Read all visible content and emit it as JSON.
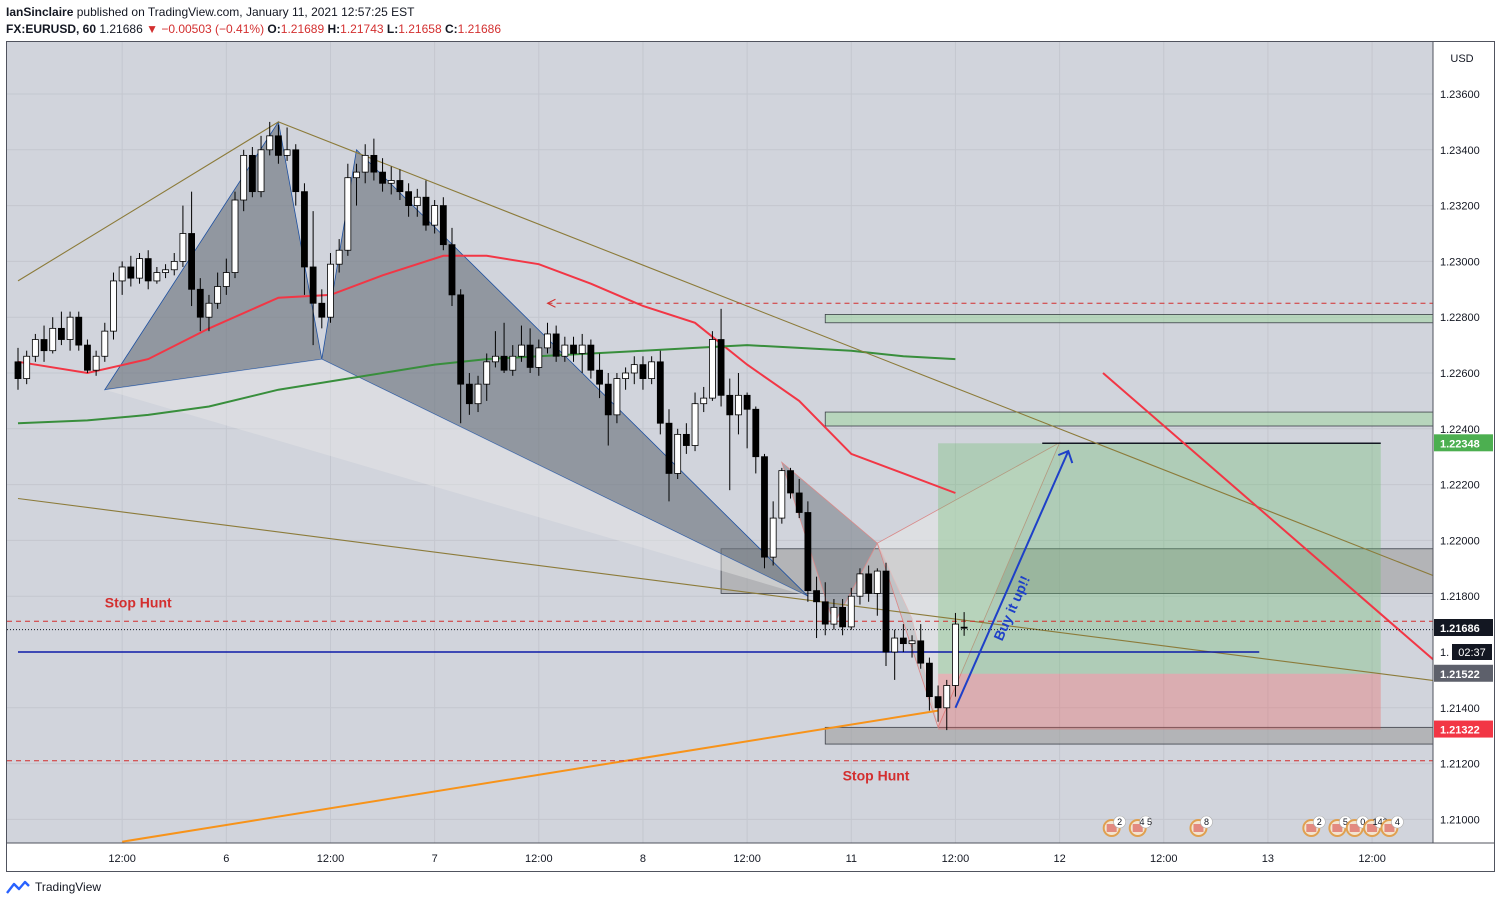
{
  "header": {
    "author": "IanSinclaire",
    "published_text": "published on TradingView.com, January 11, 2021 12:57:25 EST",
    "symbol": "FX:EURUSD, 60",
    "last": "1.21686",
    "change": "▼ −0.00503 (−0.41%)",
    "open_label": "O:",
    "open": "1.21689",
    "high_label": "H:",
    "high": "1.21743",
    "low_label": "L:",
    "low": "1.21658",
    "close_label": "C:",
    "close": "1.21686"
  },
  "footer": {
    "brand": "TradingView"
  },
  "colors": {
    "up": "#ffffff",
    "down": "#000000",
    "ema_red": "#f23645",
    "ema_green": "#388e3c",
    "hline_blue": "#0d1ba8",
    "trend_orange": "#f7931a",
    "trend_olive": "#8c7b3a",
    "pattern_fill": "#6f7680",
    "zone_green": "#a5d6a7",
    "zone_dark": "#9e9e9e"
  },
  "chart_data": {
    "type": "candlestick",
    "symbol": "EURUSD",
    "timeframe": "60",
    "currency_label": "USD",
    "ylim": [
      1.209,
      1.238
    ],
    "x_domain": [
      0,
      165
    ],
    "x_ticks": [
      {
        "x": 12,
        "label": "12:00"
      },
      {
        "x": 24,
        "label": "6"
      },
      {
        "x": 36,
        "label": "12:00"
      },
      {
        "x": 48,
        "label": "7"
      },
      {
        "x": 60,
        "label": "12:00"
      },
      {
        "x": 72,
        "label": "8"
      },
      {
        "x": 84,
        "label": "12:00"
      },
      {
        "x": 96,
        "label": "11"
      },
      {
        "x": 108,
        "label": "12:00"
      },
      {
        "x": 120,
        "label": "12"
      },
      {
        "x": 132,
        "label": "12:00"
      },
      {
        "x": 144,
        "label": "13"
      },
      {
        "x": 156,
        "label": "12:00"
      }
    ],
    "y_ticks": [
      "1.23600",
      "1.23400",
      "1.23200",
      "1.23000",
      "1.22800",
      "1.22600",
      "1.22400",
      "1.22200",
      "1.22000",
      "1.21800",
      "1.21400",
      "1.21200",
      "1.21000"
    ],
    "price_tags": [
      {
        "price": 1.22348,
        "label": "1.22348",
        "color": "#4caf50"
      },
      {
        "price": 1.21686,
        "label": "1.21686",
        "color": "#131722"
      },
      {
        "price": 1.21522,
        "label": "1.21522",
        "color": "#5d606b"
      },
      {
        "price": 1.21322,
        "label": "1.21322",
        "color": "#f23645"
      }
    ],
    "countdown": {
      "label": "02:37",
      "partial": "1."
    },
    "candles": [
      [
        1.2264,
        1.2269,
        1.2254,
        1.2258
      ],
      [
        1.2258,
        1.2268,
        1.2256,
        1.2266
      ],
      [
        1.2266,
        1.2274,
        1.2264,
        1.2272
      ],
      [
        1.2272,
        1.2277,
        1.2264,
        1.2268
      ],
      [
        1.2268,
        1.228,
        1.2267,
        1.2276
      ],
      [
        1.2276,
        1.2282,
        1.227,
        1.2272
      ],
      [
        1.2272,
        1.2282,
        1.2268,
        1.228
      ],
      [
        1.228,
        1.2282,
        1.2268,
        1.227
      ],
      [
        1.227,
        1.2272,
        1.226,
        1.2261
      ],
      [
        1.2261,
        1.2268,
        1.2259,
        1.2266
      ],
      [
        1.2266,
        1.2278,
        1.2264,
        1.2275
      ],
      [
        1.2275,
        1.2296,
        1.2272,
        1.2293
      ],
      [
        1.2293,
        1.23,
        1.2288,
        1.2298
      ],
      [
        1.2298,
        1.2302,
        1.2291,
        1.2294
      ],
      [
        1.2294,
        1.2303,
        1.2292,
        1.2301
      ],
      [
        1.2301,
        1.2304,
        1.229,
        1.2293
      ],
      [
        1.2293,
        1.2298,
        1.2292,
        1.2296
      ],
      [
        1.2296,
        1.2299,
        1.2294,
        1.2297
      ],
      [
        1.2297,
        1.2303,
        1.2295,
        1.23
      ],
      [
        1.23,
        1.232,
        1.2298,
        1.231
      ],
      [
        1.231,
        1.2325,
        1.2284,
        1.229
      ],
      [
        1.229,
        1.2294,
        1.2275,
        1.228
      ],
      [
        1.228,
        1.2288,
        1.2275,
        1.2285
      ],
      [
        1.2285,
        1.2296,
        1.2283,
        1.2291
      ],
      [
        1.2291,
        1.2301,
        1.2288,
        1.2296
      ],
      [
        1.2296,
        1.2325,
        1.2294,
        1.2322
      ],
      [
        1.2322,
        1.234,
        1.2318,
        1.2338
      ],
      [
        1.2338,
        1.2341,
        1.2323,
        1.2325
      ],
      [
        1.2325,
        1.2345,
        1.2323,
        1.234
      ],
      [
        1.234,
        1.235,
        1.2338,
        1.2345
      ],
      [
        1.2345,
        1.2349,
        1.2335,
        1.2338
      ],
      [
        1.2338,
        1.2348,
        1.2336,
        1.234
      ],
      [
        1.234,
        1.2342,
        1.232,
        1.2325
      ],
      [
        1.2325,
        1.2328,
        1.2288,
        1.2298
      ],
      [
        1.2298,
        1.2318,
        1.227,
        1.2285
      ],
      [
        1.2285,
        1.229,
        1.2276,
        1.228
      ],
      [
        1.228,
        1.2303,
        1.2278,
        1.2299
      ],
      [
        1.2299,
        1.2308,
        1.2296,
        1.2304
      ],
      [
        1.2304,
        1.2335,
        1.2302,
        1.233
      ],
      [
        1.233,
        1.2335,
        1.232,
        1.2332
      ],
      [
        1.2332,
        1.2342,
        1.2328,
        1.2338
      ],
      [
        1.2338,
        1.2344,
        1.2329,
        1.2332
      ],
      [
        1.2332,
        1.2337,
        1.2325,
        1.2328
      ],
      [
        1.2328,
        1.2334,
        1.2324,
        1.2329
      ],
      [
        1.2329,
        1.2333,
        1.2322,
        1.2325
      ],
      [
        1.2325,
        1.2328,
        1.2316,
        1.232
      ],
      [
        1.232,
        1.2326,
        1.2316,
        1.2323
      ],
      [
        1.2323,
        1.2329,
        1.2311,
        1.2313
      ],
      [
        1.2313,
        1.2322,
        1.231,
        1.232
      ],
      [
        1.232,
        1.2323,
        1.2304,
        1.2306
      ],
      [
        1.2306,
        1.2312,
        1.2284,
        1.2288
      ],
      [
        1.2288,
        1.229,
        1.2242,
        1.2256
      ],
      [
        1.2256,
        1.226,
        1.2245,
        1.2249
      ],
      [
        1.2249,
        1.2259,
        1.2246,
        1.2256
      ],
      [
        1.2256,
        1.2267,
        1.225,
        1.2264
      ],
      [
        1.2264,
        1.2275,
        1.2262,
        1.2266
      ],
      [
        1.2266,
        1.2278,
        1.226,
        1.2261
      ],
      [
        1.2261,
        1.227,
        1.2259,
        1.2266
      ],
      [
        1.2266,
        1.2277,
        1.2264,
        1.227
      ],
      [
        1.227,
        1.2276,
        1.226,
        1.2262
      ],
      [
        1.2262,
        1.2272,
        1.2259,
        1.2269
      ],
      [
        1.2269,
        1.2278,
        1.2267,
        1.2274
      ],
      [
        1.2274,
        1.2277,
        1.2264,
        1.2266
      ],
      [
        1.2266,
        1.2273,
        1.2264,
        1.227
      ],
      [
        1.227,
        1.2273,
        1.2264,
        1.2267
      ],
      [
        1.2267,
        1.2274,
        1.226,
        1.227
      ],
      [
        1.227,
        1.2272,
        1.2258,
        1.2261
      ],
      [
        1.2261,
        1.2267,
        1.2251,
        1.2256
      ],
      [
        1.2256,
        1.226,
        1.2234,
        1.2245
      ],
      [
        1.2245,
        1.226,
        1.2242,
        1.2258
      ],
      [
        1.2258,
        1.2262,
        1.2254,
        1.226
      ],
      [
        1.226,
        1.2266,
        1.2256,
        1.2263
      ],
      [
        1.2263,
        1.2266,
        1.2254,
        1.2258
      ],
      [
        1.2258,
        1.2266,
        1.2256,
        1.2264
      ],
      [
        1.2264,
        1.2268,
        1.2238,
        1.2242
      ],
      [
        1.2242,
        1.2247,
        1.2214,
        1.2224
      ],
      [
        1.2224,
        1.224,
        1.2222,
        1.2238
      ],
      [
        1.2238,
        1.2242,
        1.2231,
        1.2234
      ],
      [
        1.2234,
        1.2253,
        1.2232,
        1.2249
      ],
      [
        1.2249,
        1.2255,
        1.2246,
        1.2251
      ],
      [
        1.2251,
        1.2275,
        1.225,
        1.2272
      ],
      [
        1.2272,
        1.2283,
        1.2248,
        1.2252
      ],
      [
        1.2252,
        1.2258,
        1.2218,
        1.2245
      ],
      [
        1.2245,
        1.226,
        1.2238,
        1.2252
      ],
      [
        1.2252,
        1.2253,
        1.2233,
        1.2247
      ],
      [
        1.2247,
        1.2248,
        1.2224,
        1.223
      ],
      [
        1.223,
        1.2231,
        1.219,
        1.2194
      ],
      [
        1.2194,
        1.2214,
        1.2191,
        1.2208
      ],
      [
        1.2208,
        1.2226,
        1.2206,
        1.2225
      ],
      [
        1.2225,
        1.2226,
        1.2215,
        1.2217
      ],
      [
        1.2217,
        1.2222,
        1.2208,
        1.221
      ],
      [
        1.221,
        1.2214,
        1.2178,
        1.2182
      ],
      [
        1.2182,
        1.2187,
        1.2165,
        1.2178
      ],
      [
        1.2178,
        1.2185,
        1.2166,
        1.217
      ],
      [
        1.217,
        1.2179,
        1.2168,
        1.2176
      ],
      [
        1.2176,
        1.2179,
        1.2166,
        1.2169
      ],
      [
        1.2169,
        1.2183,
        1.2168,
        1.218
      ],
      [
        1.218,
        1.219,
        1.2177,
        1.2188
      ],
      [
        1.2188,
        1.2191,
        1.2178,
        1.2181
      ],
      [
        1.2181,
        1.219,
        1.2173,
        1.2189
      ],
      [
        1.2189,
        1.2192,
        1.2155,
        1.216
      ],
      [
        1.216,
        1.2168,
        1.215,
        1.2165
      ],
      [
        1.2165,
        1.217,
        1.216,
        1.2163
      ],
      [
        1.2163,
        1.2166,
        1.2158,
        1.2164
      ],
      [
        1.2164,
        1.217,
        1.2154,
        1.2156
      ],
      [
        1.2156,
        1.2158,
        1.2139,
        1.2144
      ],
      [
        1.2144,
        1.2148,
        1.2135,
        1.214
      ],
      [
        1.214,
        1.215,
        1.2132,
        1.2148
      ],
      [
        1.2148,
        1.2174,
        1.2144,
        1.217
      ],
      [
        1.21689,
        1.21743,
        1.21658,
        1.21686
      ]
    ],
    "ema_red": [
      [
        0,
        1.2264
      ],
      [
        8,
        1.226
      ],
      [
        15,
        1.2265
      ],
      [
        22,
        1.2276
      ],
      [
        30,
        1.2287
      ],
      [
        36,
        1.2288
      ],
      [
        42,
        1.2295
      ],
      [
        49,
        1.2302
      ],
      [
        54,
        1.2302
      ],
      [
        60,
        1.2299
      ],
      [
        66,
        1.2292
      ],
      [
        72,
        1.2284
      ],
      [
        78,
        1.2278
      ],
      [
        84,
        1.2263
      ],
      [
        90,
        1.225
      ],
      [
        96,
        1.2231
      ],
      [
        102,
        1.2224
      ],
      [
        108,
        1.2217
      ]
    ],
    "ema_green": [
      [
        0,
        1.2242
      ],
      [
        8,
        1.2243
      ],
      [
        15,
        1.2245
      ],
      [
        22,
        1.2248
      ],
      [
        30,
        1.2254
      ],
      [
        36,
        1.2257
      ],
      [
        42,
        1.226
      ],
      [
        48,
        1.2263
      ],
      [
        54,
        1.2265
      ],
      [
        60,
        1.2266
      ],
      [
        66,
        1.2267
      ],
      [
        72,
        1.2268
      ],
      [
        78,
        1.2269
      ],
      [
        84,
        1.227
      ],
      [
        90,
        1.2269
      ],
      [
        96,
        1.2268
      ],
      [
        102,
        1.2266
      ],
      [
        108,
        1.2265
      ]
    ],
    "horizontal_lines": [
      {
        "price": 1.216,
        "color": "#0d1ba8",
        "x_start": 0,
        "x_end": 143
      },
      {
        "price": 1.2171,
        "color": "#d32f2f",
        "dashed": true
      },
      {
        "price": 1.2168,
        "color": "#131722",
        "dotted": true
      },
      {
        "price": 1.2121,
        "color": "#d32f2f",
        "dashed": true
      },
      {
        "price": 1.2285,
        "color": "#d32f2f",
        "dashed": true,
        "x_start": 61
      }
    ],
    "trendlines": [
      {
        "name": "olive-upper",
        "color": "#8c7b3a",
        "points": [
          [
            0,
            1.2293
          ],
          [
            30,
            1.235
          ],
          [
            165,
            1.2185
          ]
        ]
      },
      {
        "name": "olive-lower",
        "color": "#8c7b3a",
        "points": [
          [
            0,
            1.2215
          ],
          [
            165,
            1.2149
          ]
        ]
      },
      {
        "name": "orange-support",
        "color": "#f7931a",
        "points": [
          [
            12,
            1.2092
          ],
          [
            106,
            1.2139
          ]
        ]
      },
      {
        "name": "red-downtrend",
        "color": "#f23645",
        "points": [
          [
            125,
            1.226
          ],
          [
            165,
            1.2152
          ]
        ]
      }
    ],
    "harmonic_patterns": [
      {
        "name": "pattern-gray-left",
        "points": [
          [
            10,
            1.2254
          ],
          [
            30,
            1.235
          ],
          [
            35,
            1.2265
          ],
          [
            39,
            1.234
          ],
          [
            91,
            1.218
          ]
        ]
      },
      {
        "name": "pattern-small",
        "points": [
          [
            88,
            1.2228
          ],
          [
            94,
            1.217
          ],
          [
            99,
            1.2199
          ],
          [
            106,
            1.2133
          ],
          [
            103,
            1.2172
          ]
        ]
      },
      {
        "name": "pattern-light",
        "points": [
          [
            106,
            1.2133
          ],
          [
            120,
            1.2235
          ],
          [
            99,
            1.2199
          ]
        ]
      }
    ],
    "zones": [
      {
        "name": "green-zone-top",
        "from": [
          93,
          1.2281
        ],
        "to": [
          165,
          1.2278
        ],
        "color": "#a5d6a7"
      },
      {
        "name": "green-zone-mid",
        "from": [
          93,
          1.2246
        ],
        "to": [
          165,
          1.2241
        ],
        "color": "#a5d6a7"
      },
      {
        "name": "gray-zone",
        "from": [
          81,
          1.2197
        ],
        "to": [
          165,
          1.2181
        ],
        "color": "#9e9e9e"
      },
      {
        "name": "gray-zone-bottom",
        "from": [
          93,
          1.2133
        ],
        "to": [
          165,
          1.2127
        ],
        "color": "#9e9e9e"
      }
    ],
    "position": {
      "entry": 1.21522,
      "target": 1.22348,
      "stop": 1.21322,
      "x_from": 106,
      "x_to": 157
    },
    "arrow": {
      "from": [
        108,
        1.214
      ],
      "to": [
        121,
        1.2232
      ],
      "color": "#1e40c8"
    },
    "annotations": [
      {
        "text": "Stop Hunt",
        "x": 10,
        "price": 1.2176,
        "color": "#d32f2f"
      },
      {
        "text": "Stop Hunt",
        "x": 95,
        "price": 1.2114,
        "color": "#d32f2f"
      },
      {
        "text": "Buy it up!!",
        "x": 115,
        "price": 1.2175,
        "color": "#1e40c8",
        "rotate": -66
      }
    ],
    "event_markers": [
      {
        "x": 126,
        "badge": "2"
      },
      {
        "x": 129,
        "badge": "4 5"
      },
      {
        "x": 136,
        "badge": "8"
      },
      {
        "x": 149,
        "badge": "2"
      },
      {
        "x": 152,
        "badge": "5"
      },
      {
        "x": 154,
        "badge": "0"
      },
      {
        "x": 156,
        "badge": "142"
      },
      {
        "x": 158,
        "badge": "4"
      }
    ]
  }
}
